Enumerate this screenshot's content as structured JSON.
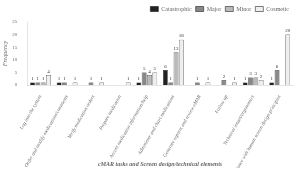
{
  "chart_data": {
    "type": "bar",
    "categories": [
      "Log into the system",
      "Order and modify medications/comments",
      "Verify medication orders",
      "Prepare medication",
      "Access medication information/help",
      "Administer and chart medications",
      "Generate reports and review eMAR",
      "Follow up",
      "Technical issues/ergonomics",
      "Compliance with human screen design principles"
    ],
    "series": [
      {
        "name": "Catastrophic",
        "color": "#222222",
        "values": [
          1,
          1,
          0,
          0,
          1,
          6,
          0,
          0,
          1,
          1
        ]
      },
      {
        "name": "Major",
        "color": "#888888",
        "values": [
          1,
          1,
          1,
          0,
          5,
          1,
          1,
          2,
          3,
          6
        ]
      },
      {
        "name": "Minor",
        "color": "#bbbbbb",
        "values": [
          1,
          0,
          0,
          0,
          4,
          13,
          0,
          0,
          3,
          0
        ]
      },
      {
        "name": "Cosmetic",
        "color": "#eeeeee",
        "values": [
          4,
          1,
          1,
          1,
          5,
          18,
          1,
          1,
          2,
          20
        ]
      }
    ],
    "xlabel": "cMAR tasks and Screen design/technical elements",
    "ylabel": "Frequency",
    "ylim": [
      0,
      25
    ],
    "yticks": [
      0,
      5,
      10,
      15,
      20,
      25
    ],
    "grid": false,
    "legend": "upper right",
    "data_labels": true
  }
}
